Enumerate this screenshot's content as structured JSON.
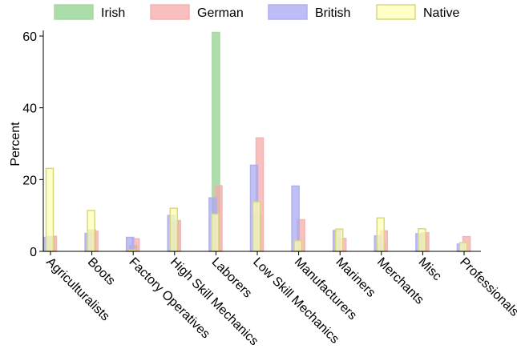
{
  "chart_data": {
    "type": "bar",
    "title": "",
    "xlabel": "",
    "ylabel": "Percent",
    "ylim": [
      0,
      61
    ],
    "yticks": [
      0,
      20,
      40,
      60
    ],
    "grid": false,
    "legend_position": "top",
    "categories": [
      "Agriculturalists",
      "Boots",
      "Factory Operatives",
      "High Skill Mechanics",
      "Laborers",
      "Low Skill Mechanics",
      "Manufacturers",
      "Mariners",
      "Merchants",
      "Misc",
      "Professionals"
    ],
    "series": [
      {
        "name": "Irish",
        "fill": "#8fd18f",
        "stroke": "#a9d6a0",
        "values": [
          4.2,
          6.0,
          1.6,
          8.3,
          61.0,
          10.2,
          0,
          0,
          2.3,
          4.6,
          0
        ]
      },
      {
        "name": "German",
        "fill": "#f7a8a8",
        "stroke": "#f2b4b4",
        "values": [
          4.2,
          5.6,
          3.5,
          8.6,
          18.3,
          31.6,
          8.8,
          3.6,
          5.7,
          5.2,
          4.1
        ]
      },
      {
        "name": "British",
        "fill": "#a7a7f5",
        "stroke": "#b0b0ee",
        "values": [
          3.9,
          5.0,
          3.9,
          10.0,
          14.9,
          24.0,
          18.2,
          5.8,
          4.3,
          4.9,
          2.0
        ]
      },
      {
        "name": "Native",
        "fill": "#ffffb3",
        "stroke": "#d7d780",
        "values": [
          23.1,
          11.4,
          0.4,
          12.0,
          10.4,
          13.8,
          3.0,
          6.2,
          9.3,
          6.3,
          2.4
        ]
      }
    ]
  }
}
